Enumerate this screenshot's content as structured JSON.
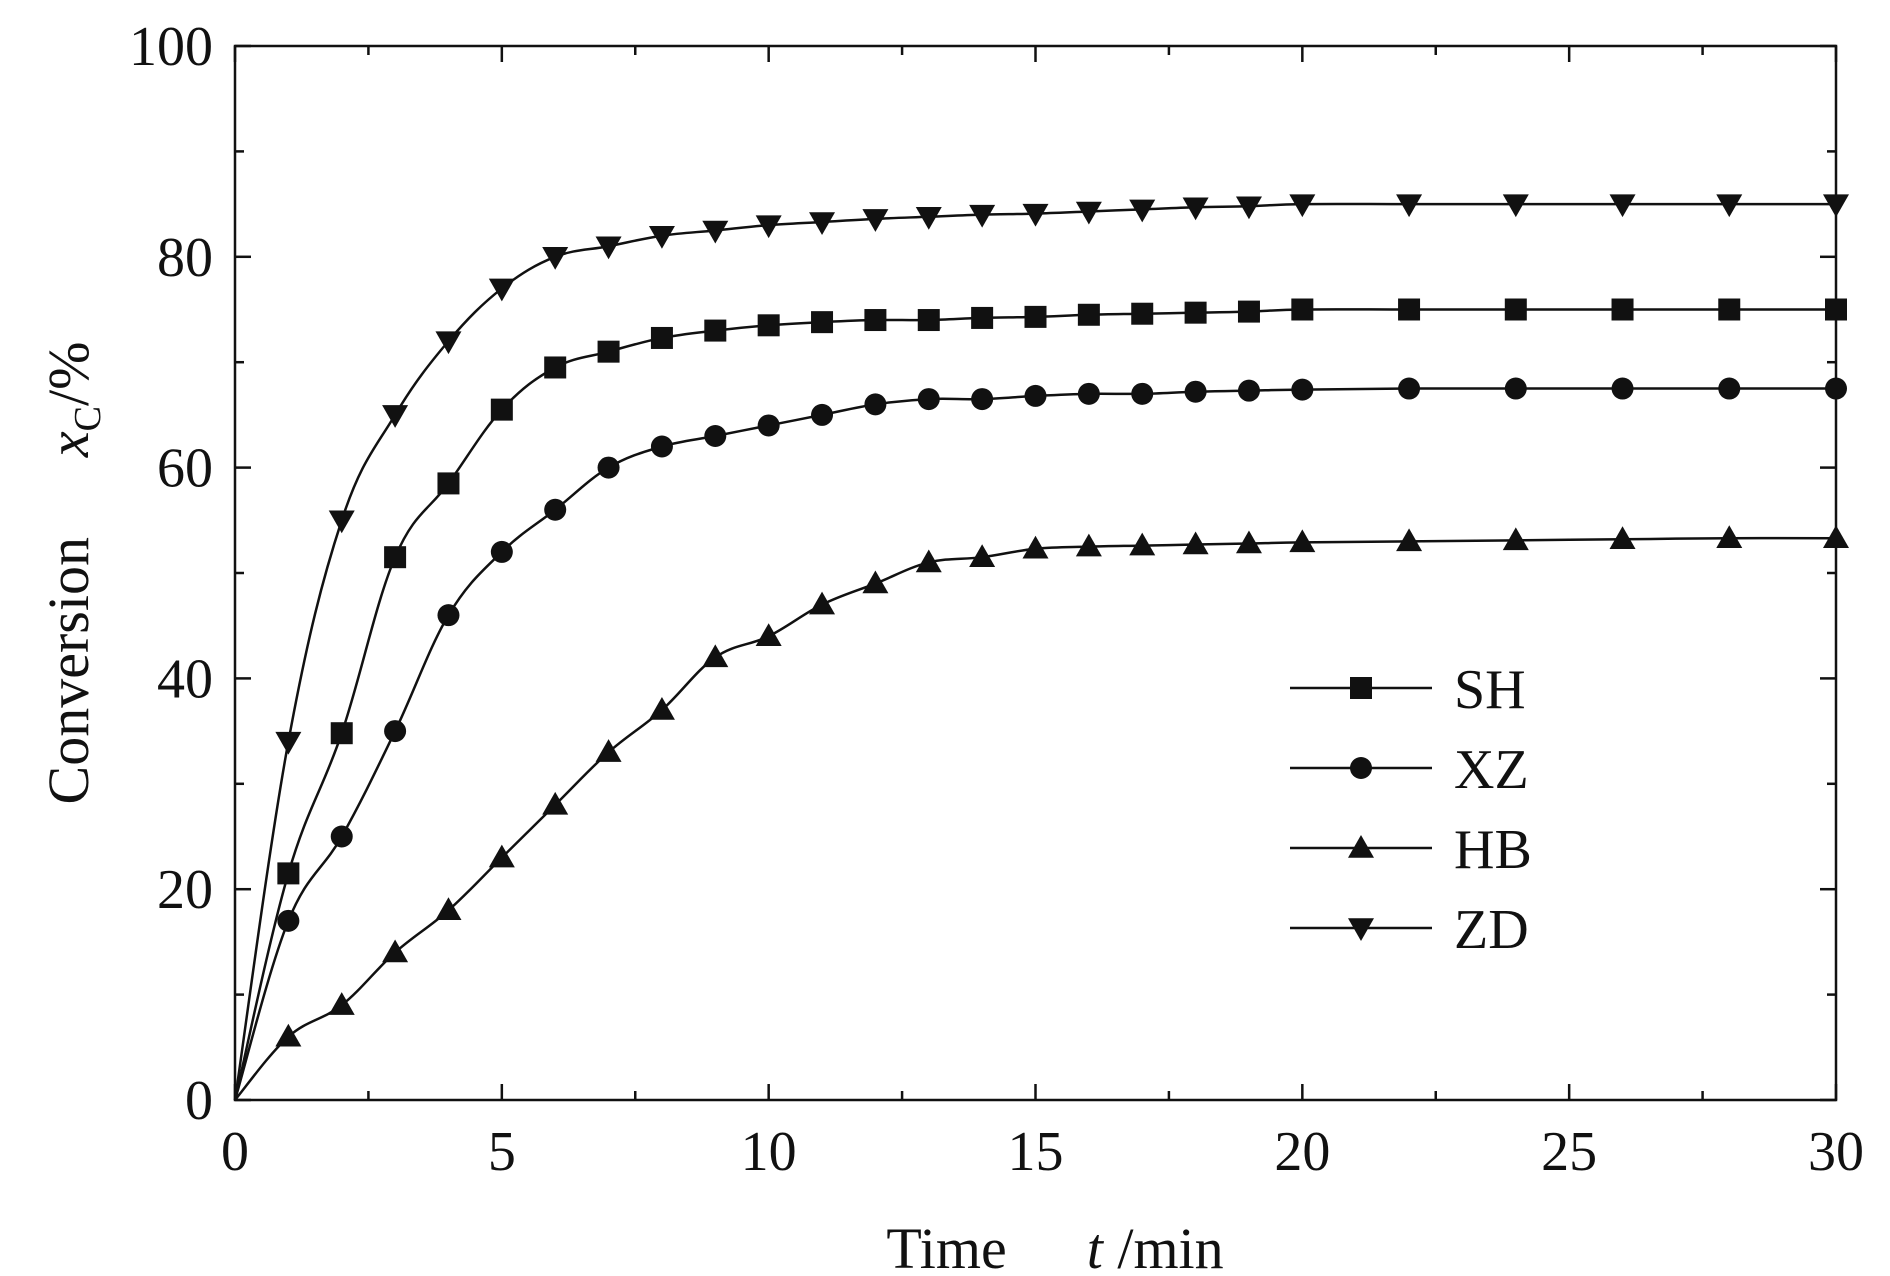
{
  "chart_data": {
    "type": "line",
    "xlabel": {
      "prefix": "Time",
      "var": "t",
      "unit": " /min"
    },
    "ylabel": {
      "prefix": "Conversion",
      "var": "x",
      "sub": "C",
      "unit": "/%"
    },
    "xlim": [
      0,
      30
    ],
    "ylim": [
      0,
      100
    ],
    "xticks": [
      0,
      5,
      10,
      15,
      20,
      25,
      30
    ],
    "yticks": [
      0,
      20,
      40,
      60,
      80,
      100
    ],
    "grid": false,
    "legend_position": "right-middle",
    "series": [
      {
        "name": "SH",
        "marker": "square",
        "x": [
          0,
          1,
          2,
          3,
          4,
          5,
          6,
          7,
          8,
          9,
          10,
          11,
          12,
          13,
          14,
          15,
          16,
          17,
          18,
          19,
          20,
          22,
          24,
          26,
          28,
          30
        ],
        "y": [
          0,
          21.5,
          34.8,
          51.5,
          58.5,
          65.5,
          69.5,
          71,
          72.3,
          73,
          73.5,
          73.8,
          74,
          74,
          74.2,
          74.3,
          74.5,
          74.6,
          74.7,
          74.8,
          75,
          75,
          75,
          75,
          75,
          75
        ]
      },
      {
        "name": "XZ",
        "marker": "circle",
        "x": [
          0,
          1,
          2,
          3,
          4,
          5,
          6,
          7,
          8,
          9,
          10,
          11,
          12,
          13,
          14,
          15,
          16,
          17,
          18,
          19,
          20,
          22,
          24,
          26,
          28,
          30
        ],
        "y": [
          0,
          17,
          25,
          35,
          46,
          52,
          56,
          60,
          62,
          63,
          64,
          65,
          66,
          66.5,
          66.5,
          66.8,
          67,
          67,
          67.2,
          67.3,
          67.4,
          67.5,
          67.5,
          67.5,
          67.5,
          67.5
        ]
      },
      {
        "name": "HB",
        "marker": "triangle-up",
        "x": [
          0,
          1,
          2,
          3,
          4,
          5,
          6,
          7,
          8,
          9,
          10,
          11,
          12,
          13,
          14,
          15,
          16,
          17,
          18,
          19,
          20,
          22,
          24,
          26,
          28,
          30
        ],
        "y": [
          0,
          6,
          9,
          14,
          18,
          23,
          28,
          33,
          37,
          42,
          44,
          47,
          49,
          51,
          51.5,
          52.3,
          52.5,
          52.6,
          52.7,
          52.8,
          52.9,
          53,
          53.1,
          53.2,
          53.3,
          53.3
        ]
      },
      {
        "name": "ZD",
        "marker": "triangle-down",
        "x": [
          0,
          1,
          2,
          3,
          4,
          5,
          6,
          7,
          8,
          9,
          10,
          11,
          12,
          13,
          14,
          15,
          16,
          17,
          18,
          19,
          20,
          22,
          24,
          26,
          28,
          30
        ],
        "y": [
          0,
          34,
          55,
          65,
          72,
          77,
          80,
          81,
          82,
          82.5,
          83,
          83.3,
          83.6,
          83.8,
          84,
          84.1,
          84.3,
          84.5,
          84.7,
          84.8,
          85,
          85,
          85,
          85,
          85,
          85
        ]
      }
    ]
  }
}
